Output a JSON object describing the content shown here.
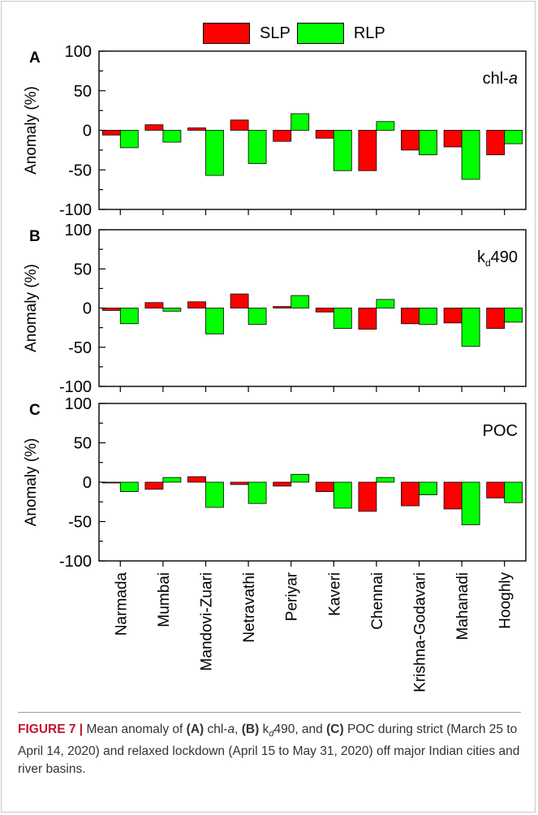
{
  "legend": [
    {
      "name": "SLP",
      "color": "#ff0000"
    },
    {
      "name": "RLP",
      "color": "#00ff00"
    }
  ],
  "colors": {
    "slp": "#ff0000",
    "rlp": "#00ff00"
  },
  "chart_data": [
    {
      "type": "bar",
      "panel_letter": "A",
      "panel_label_main": "chl-",
      "panel_label_italic": "a",
      "panel_label_sub": "",
      "panel_label_suffix": "",
      "ylabel": "Anomaly (%)",
      "ylim": [
        -100,
        100
      ],
      "yticks": [
        -100,
        -50,
        0,
        50,
        100
      ],
      "categories": [
        "Narmada",
        "Mumbai",
        "Mandovi-Zuari",
        "Netravathi",
        "Periyar",
        "Kaveri",
        "Chennai",
        "Krishna-Godavari",
        "Mahanadi",
        "Hooghly"
      ],
      "series": [
        {
          "name": "SLP",
          "values": [
            -6,
            7,
            3,
            13,
            -14,
            -10,
            -51,
            -25,
            -21,
            -31
          ]
        },
        {
          "name": "RLP",
          "values": [
            -22,
            -15,
            -57,
            -42,
            21,
            -51,
            11,
            -31,
            -62,
            -17
          ]
        }
      ]
    },
    {
      "type": "bar",
      "panel_letter": "B",
      "panel_label_main": "k",
      "panel_label_italic": "",
      "panel_label_sub": "d",
      "panel_label_suffix": "490",
      "ylabel": "Anomaly (%)",
      "ylim": [
        -100,
        100
      ],
      "yticks": [
        -100,
        -50,
        0,
        50,
        100
      ],
      "categories": [
        "Narmada",
        "Mumbai",
        "Mandovi-Zuari",
        "Netravathi",
        "Periyar",
        "Kaveri",
        "Chennai",
        "Krishna-Godavari",
        "Mahanadi",
        "Hooghly"
      ],
      "series": [
        {
          "name": "SLP",
          "values": [
            -3,
            7,
            8,
            18,
            2,
            -5,
            -27,
            -20,
            -19,
            -26
          ]
        },
        {
          "name": "RLP",
          "values": [
            -20,
            -4,
            -33,
            -21,
            16,
            -26,
            11,
            -21,
            -49,
            -18
          ]
        }
      ]
    },
    {
      "type": "bar",
      "panel_letter": "C",
      "panel_label_main": "POC",
      "panel_label_italic": "",
      "panel_label_sub": "",
      "panel_label_suffix": "",
      "ylabel": "Anomaly (%)",
      "ylim": [
        -100,
        100
      ],
      "yticks": [
        -100,
        -50,
        0,
        50,
        100
      ],
      "categories": [
        "Narmada",
        "Mumbai",
        "Mandovi-Zuari",
        "Netravathi",
        "Periyar",
        "Kaveri",
        "Chennai",
        "Krishna-Godavari",
        "Mahanadi",
        "Hooghly"
      ],
      "series": [
        {
          "name": "SLP",
          "values": [
            -1,
            -9,
            7,
            -3,
            -5,
            -12,
            -37,
            -30,
            -34,
            -20
          ]
        },
        {
          "name": "RLP",
          "values": [
            -12,
            6,
            -32,
            -27,
            10,
            -33,
            6,
            -16,
            -54,
            -26
          ]
        }
      ]
    }
  ],
  "caption": {
    "head": "FIGURE 7 |",
    "t1": " Mean anomaly of ",
    "a": "(A)",
    "t2": " chl-",
    "a_it": "a",
    "t3": ", ",
    "b": "(B)",
    "t4": " k",
    "b_sub": "d",
    "t5": "490, and ",
    "c": "(C)",
    "t6": " POC during strict (March 25 to April 14, 2020) and relaxed lockdown (April 15 to May 31, 2020) off major Indian cities and river basins."
  }
}
